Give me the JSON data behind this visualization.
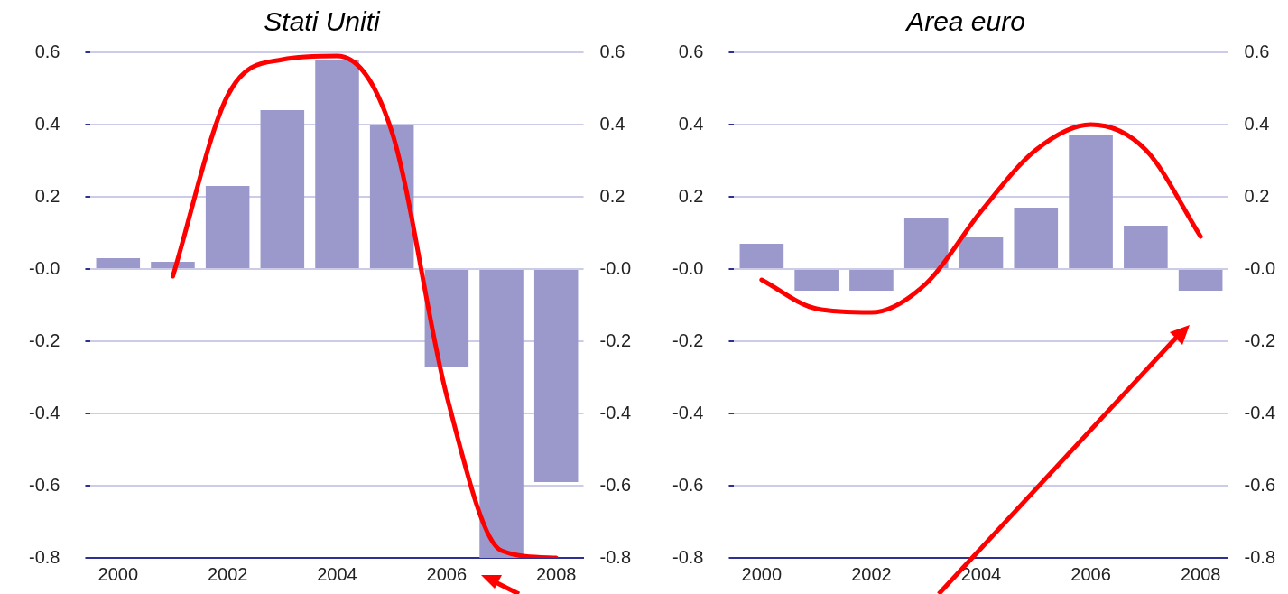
{
  "chart_data": [
    {
      "type": "bar",
      "title": "Stati Uniti",
      "categories": [
        "2000",
        null,
        "2002",
        null,
        "2004",
        null,
        "2006",
        null,
        "2008"
      ],
      "series": [
        {
          "color": "#9b99cc",
          "values": [
            0.03,
            0.02,
            0.23,
            0.44,
            0.58,
            0.4,
            -0.27,
            -0.8,
            -0.59
          ]
        },
        {
          "type": "line",
          "color": "#ff0000",
          "values": [
            null,
            -0.02,
            0.48,
            0.58,
            0.59,
            0.38,
            -0.35,
            -0.78,
            -0.8
          ]
        }
      ],
      "ylim": [
        -0.8,
        0.6
      ],
      "yticks": [
        -0.8,
        -0.6,
        -0.4,
        -0.2,
        {
          "value": 0,
          "label": "-0.0"
        },
        0.2,
        0.4,
        0.6
      ],
      "y2lim": [
        -0.8,
        0.6
      ],
      "y2ticks": [
        -0.8,
        -0.6,
        -0.4,
        -0.2,
        {
          "value": 0,
          "label": "-0.0"
        },
        0.2,
        0.4,
        0.6
      ],
      "grid": "y",
      "marker": "none"
    },
    {
      "type": "bar",
      "title": "Area euro",
      "categories": [
        "2000",
        null,
        "2002",
        null,
        "2004",
        null,
        "2006",
        null,
        "2008"
      ],
      "series": [
        {
          "color": "#9b99cc",
          "values": [
            0.07,
            -0.06,
            -0.06,
            0.14,
            0.09,
            0.17,
            0.37,
            0.12,
            -0.06
          ]
        },
        {
          "type": "line",
          "color": "#ff0000",
          "values": [
            -0.03,
            -0.11,
            -0.12,
            -0.04,
            0.16,
            0.33,
            0.4,
            0.33,
            0.09
          ]
        }
      ],
      "ylim": [
        -0.8,
        0.6
      ],
      "yticks": [
        -0.8,
        -0.6,
        -0.4,
        -0.2,
        {
          "value": 0,
          "label": "-0.0"
        },
        0.2,
        0.4,
        0.6
      ],
      "y2lim": [
        -0.8,
        0.6
      ],
      "y2ticks": [
        -0.8,
        -0.6,
        -0.4,
        -0.2,
        {
          "value": 0,
          "label": "-0.0"
        },
        0.2,
        0.4,
        0.6
      ],
      "grid": "y",
      "marker": "none"
    }
  ]
}
